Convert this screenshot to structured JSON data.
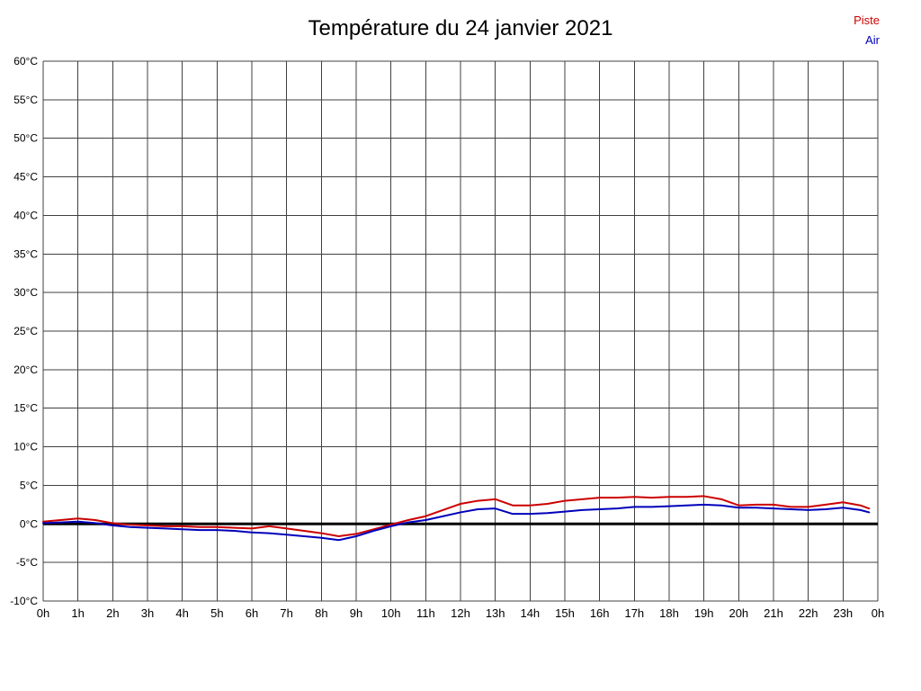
{
  "title": "Température du 24 janvier 2021",
  "legend": [
    {
      "label": "Piste",
      "color": "#cc0000"
    },
    {
      "label": "Air",
      "color": "#0000bb"
    }
  ],
  "chart_data": {
    "type": "line",
    "title": "Température du 24 janvier 2021",
    "xlabel": "",
    "ylabel": "",
    "xlim": [
      0,
      24
    ],
    "ylim": [
      -10,
      60
    ],
    "y_tick_step": 5,
    "y_tick_suffix": "°C",
    "y_tick_labels": [
      "60°C",
      "55°C",
      "50°C",
      "45°C",
      "40°C",
      "35°C",
      "30°C",
      "25°C",
      "20°C",
      "15°C",
      "10°C",
      "5°C",
      "0°C",
      "-5°C",
      "-10°C"
    ],
    "x_tick_interval": 1,
    "x_tick_labels": [
      "0h",
      "1h",
      "2h",
      "3h",
      "4h",
      "5h",
      "6h",
      "7h",
      "8h",
      "9h",
      "10h",
      "11h",
      "12h",
      "13h",
      "14h",
      "15h",
      "16h",
      "17h",
      "18h",
      "19h",
      "20h",
      "21h",
      "22h",
      "23h",
      "0h"
    ],
    "grid": true,
    "grid_color": "#404040",
    "zero_line": true,
    "zero_line_color": "#000000",
    "legend_position": "top-right",
    "series": [
      {
        "name": "Piste",
        "color": "#cc0000",
        "x": [
          0,
          0.5,
          1,
          1.5,
          2,
          2.5,
          3,
          3.5,
          4,
          4.5,
          5,
          5.5,
          6,
          6.5,
          7,
          7.5,
          8,
          8.5,
          9,
          9.5,
          10,
          10.5,
          11,
          11.5,
          12,
          12.5,
          13,
          13.5,
          14,
          14.5,
          15,
          15.5,
          16,
          16.5,
          17,
          17.5,
          18,
          18.5,
          19,
          19.5,
          20,
          20.5,
          21,
          21.5,
          22,
          22.5,
          23,
          23.5,
          23.75
        ],
        "values": [
          0.3,
          0.5,
          0.7,
          0.5,
          0.1,
          -0.1,
          -0.2,
          -0.3,
          -0.3,
          -0.4,
          -0.4,
          -0.5,
          -0.6,
          -0.3,
          -0.6,
          -0.9,
          -1.2,
          -1.6,
          -1.3,
          -0.7,
          -0.1,
          0.5,
          1.0,
          1.8,
          2.6,
          3.0,
          3.2,
          2.4,
          2.4,
          2.6,
          3.0,
          3.2,
          3.4,
          3.4,
          3.5,
          3.4,
          3.5,
          3.5,
          3.6,
          3.2,
          2.4,
          2.5,
          2.5,
          2.2,
          2.2,
          2.5,
          2.8,
          2.4,
          2.0
        ]
      },
      {
        "name": "Air",
        "color": "#0000bb",
        "x": [
          0,
          0.5,
          1,
          1.5,
          2,
          2.5,
          3,
          3.5,
          4,
          4.5,
          5,
          5.5,
          6,
          6.5,
          7,
          7.5,
          8,
          8.5,
          9,
          9.5,
          10,
          10.5,
          11,
          11.5,
          12,
          12.5,
          13,
          13.5,
          14,
          14.5,
          15,
          15.5,
          16,
          16.5,
          17,
          17.5,
          18,
          18.5,
          19,
          19.5,
          20,
          20.5,
          21,
          21.5,
          22,
          22.5,
          23,
          23.5,
          23.75
        ],
        "values": [
          0.1,
          0.2,
          0.3,
          0.1,
          -0.2,
          -0.4,
          -0.5,
          -0.6,
          -0.7,
          -0.8,
          -0.8,
          -0.9,
          -1.1,
          -1.2,
          -1.4,
          -1.6,
          -1.8,
          -2.1,
          -1.6,
          -0.9,
          -0.3,
          0.2,
          0.5,
          1.0,
          1.5,
          1.9,
          2.0,
          1.3,
          1.3,
          1.4,
          1.6,
          1.8,
          1.9,
          2.0,
          2.2,
          2.2,
          2.3,
          2.4,
          2.5,
          2.4,
          2.1,
          2.1,
          2.0,
          1.9,
          1.8,
          1.9,
          2.1,
          1.8,
          1.5
        ]
      }
    ]
  }
}
